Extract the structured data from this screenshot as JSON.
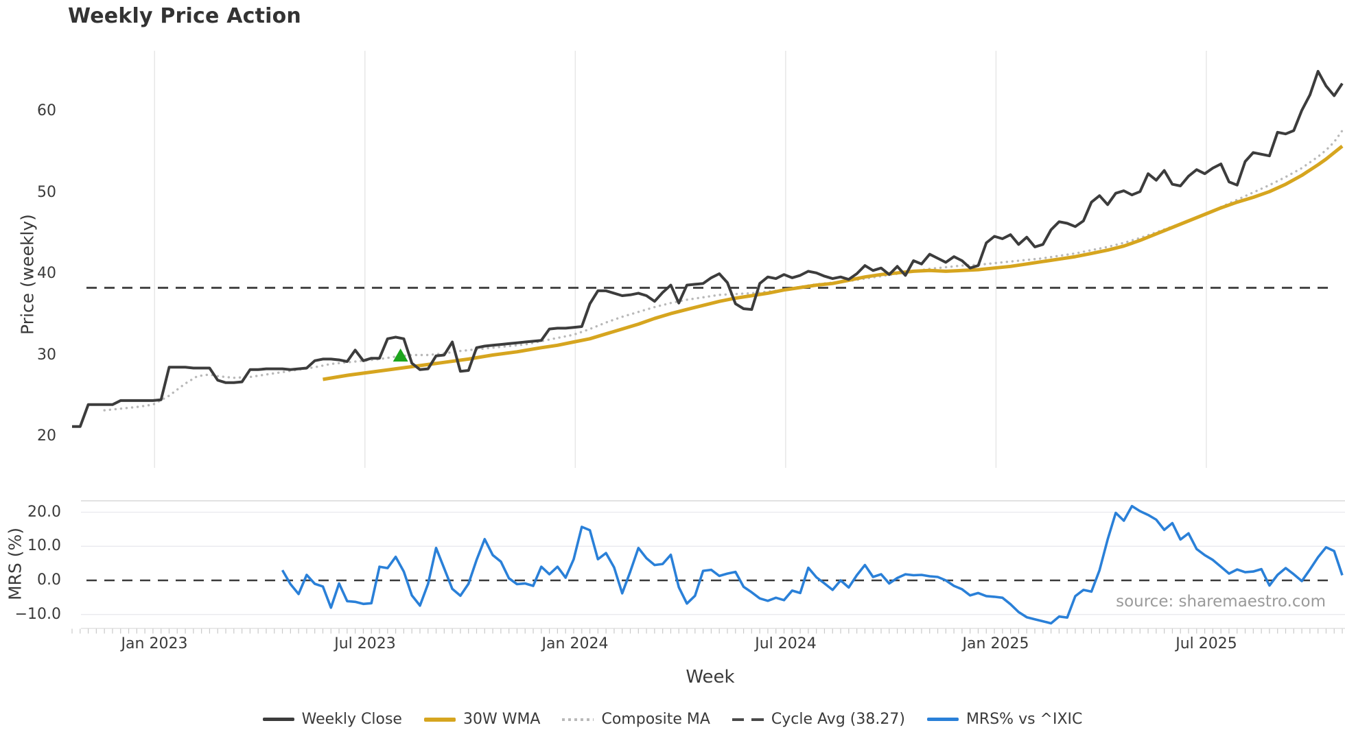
{
  "title": "Weekly Price Action",
  "source_note": "source: sharemaestro.com",
  "colors": {
    "weekly_close": "#3c3c3c",
    "wma_30w": "#d6a51f",
    "composite_ma": "#b9b9b9",
    "cycle_avg": "#474747",
    "mrs_line": "#2a80d8",
    "signal_marker": "#1da51d",
    "gridline": "#e7e7e7",
    "tick_text": "#3a3a3a"
  },
  "axes": {
    "x": {
      "label": "Week",
      "ticks": [
        {
          "label": "Jan 2023",
          "week": 10.2
        },
        {
          "label": "Jul 2023",
          "week": 36.2
        },
        {
          "label": "Jan 2024",
          "week": 62.2
        },
        {
          "label": "Jul 2024",
          "week": 88.2
        },
        {
          "label": "Jan 2025",
          "week": 114.2
        },
        {
          "label": "Jul 2025",
          "week": 140.2
        }
      ]
    },
    "price_y": {
      "label": "Price (weekly)",
      "ticks": [
        "60",
        "50",
        "40",
        "30",
        "20"
      ]
    },
    "mrs_y": {
      "label": "MRS (%)",
      "ticks": [
        "20.0",
        "10.0",
        "0.0",
        "−10.0"
      ]
    }
  },
  "legend": [
    {
      "label": "Weekly Close",
      "color": "#3c3c3c",
      "style": "solid"
    },
    {
      "label": "30W WMA",
      "color": "#d6a51f",
      "style": "solid"
    },
    {
      "label": "Composite MA",
      "color": "#b9b9b9",
      "style": "dotted"
    },
    {
      "label": "Cycle Avg (38.27)",
      "color": "#4a4a4a",
      "style": "dashed"
    },
    {
      "label": "MRS% vs ^IXIC",
      "color": "#2a80d8",
      "style": "solid"
    }
  ],
  "chart_data": [
    {
      "type": "line",
      "panel": "price",
      "title": "Weekly Price Action",
      "xlabel": "Week",
      "ylabel": "Price (weekly)",
      "ylim": [
        16.5,
        67.5
      ],
      "yticks": [
        20,
        30,
        40,
        50,
        60
      ],
      "x_unit": "week_index",
      "x_range_weeks": [
        0,
        157
      ],
      "x_tick_labels": [
        "Jan 2023",
        "Jul 2023",
        "Jan 2024",
        "Jul 2024",
        "Jan 2025",
        "Jul 2025"
      ],
      "grid": "vertical-only",
      "series": [
        {
          "name": "Cycle Avg",
          "type": "hline",
          "value": 38.27,
          "color": "#474747",
          "style": "dashed",
          "line_width": 3
        },
        {
          "name": "Composite MA",
          "type": "line",
          "style": "dotted",
          "color": "#b9b9b9",
          "line_width": 3.4,
          "points": [
            [
              4,
              23.2
            ],
            [
              6,
              23.4
            ],
            [
              8,
              23.6
            ],
            [
              10,
              23.9
            ],
            [
              12,
              25.0
            ],
            [
              14,
              26.5
            ],
            [
              15.5,
              27.4
            ],
            [
              17,
              27.6
            ],
            [
              18,
              27.4
            ],
            [
              20,
              27.2
            ],
            [
              22,
              27.3
            ],
            [
              24,
              27.6
            ],
            [
              26,
              27.9
            ],
            [
              28,
              28.2
            ],
            [
              30,
              28.5
            ],
            [
              32,
              28.9
            ],
            [
              34,
              29.1
            ],
            [
              36,
              29.3
            ],
            [
              38,
              29.5
            ],
            [
              40,
              29.8
            ],
            [
              42,
              30.0
            ],
            [
              44,
              30.0
            ],
            [
              46,
              30.2
            ],
            [
              48,
              30.5
            ],
            [
              50,
              30.7
            ],
            [
              52,
              30.9
            ],
            [
              54,
              31.1
            ],
            [
              56,
              31.3
            ],
            [
              58,
              31.7
            ],
            [
              60,
              32.1
            ],
            [
              62,
              32.5
            ],
            [
              64,
              33.2
            ],
            [
              66,
              34.0
            ],
            [
              68,
              34.7
            ],
            [
              70,
              35.3
            ],
            [
              72,
              35.9
            ],
            [
              74,
              36.4
            ],
            [
              76,
              36.8
            ],
            [
              78,
              37.1
            ],
            [
              80,
              37.4
            ],
            [
              82,
              37.5
            ],
            [
              84,
              37.6
            ],
            [
              86,
              37.8
            ],
            [
              88,
              38.0
            ],
            [
              90,
              38.4
            ],
            [
              92,
              38.7
            ],
            [
              94,
              38.9
            ],
            [
              96,
              39.1
            ],
            [
              98,
              39.4
            ],
            [
              100,
              39.7
            ],
            [
              102,
              40.0
            ],
            [
              104,
              40.3
            ],
            [
              106,
              40.6
            ],
            [
              108,
              40.8
            ],
            [
              110,
              41.0
            ],
            [
              112,
              41.1
            ],
            [
              114,
              41.3
            ],
            [
              116,
              41.5
            ],
            [
              118,
              41.7
            ],
            [
              120,
              41.9
            ],
            [
              122,
              42.2
            ],
            [
              124,
              42.5
            ],
            [
              126,
              42.9
            ],
            [
              128,
              43.3
            ],
            [
              130,
              43.8
            ],
            [
              132,
              44.4
            ],
            [
              134,
              45.1
            ],
            [
              136,
              45.8
            ],
            [
              138,
              46.5
            ],
            [
              140,
              47.3
            ],
            [
              142,
              48.2
            ],
            [
              144,
              49.1
            ],
            [
              146,
              50.0
            ],
            [
              148,
              50.9
            ],
            [
              150,
              51.9
            ],
            [
              152,
              53.0
            ],
            [
              154,
              54.4
            ],
            [
              155,
              55.2
            ],
            [
              156,
              56.2
            ],
            [
              157,
              57.6
            ]
          ]
        },
        {
          "name": "30W WMA",
          "type": "line",
          "style": "solid",
          "color": "#d6a51f",
          "line_width": 5,
          "points": [
            [
              31,
              27.0
            ],
            [
              34,
              27.5
            ],
            [
              37,
              27.9
            ],
            [
              40,
              28.3
            ],
            [
              43,
              28.7
            ],
            [
              46,
              29.1
            ],
            [
              49,
              29.5
            ],
            [
              52,
              30.0
            ],
            [
              55,
              30.4
            ],
            [
              58,
              30.9
            ],
            [
              60,
              31.2
            ],
            [
              62,
              31.6
            ],
            [
              64,
              32.0
            ],
            [
              66,
              32.6
            ],
            [
              68,
              33.2
            ],
            [
              70,
              33.8
            ],
            [
              72,
              34.5
            ],
            [
              74,
              35.1
            ],
            [
              76,
              35.6
            ],
            [
              78,
              36.1
            ],
            [
              80,
              36.6
            ],
            [
              82,
              37.0
            ],
            [
              84,
              37.3
            ],
            [
              86,
              37.6
            ],
            [
              88,
              38.0
            ],
            [
              90,
              38.3
            ],
            [
              92,
              38.6
            ],
            [
              94,
              38.8
            ],
            [
              96,
              39.2
            ],
            [
              98,
              39.6
            ],
            [
              100,
              39.9
            ],
            [
              102,
              40.1
            ],
            [
              104,
              40.3
            ],
            [
              106,
              40.4
            ],
            [
              108,
              40.3
            ],
            [
              110,
              40.4
            ],
            [
              112,
              40.5
            ],
            [
              114,
              40.7
            ],
            [
              116,
              40.9
            ],
            [
              118,
              41.2
            ],
            [
              120,
              41.5
            ],
            [
              122,
              41.8
            ],
            [
              124,
              42.1
            ],
            [
              126,
              42.5
            ],
            [
              128,
              42.9
            ],
            [
              130,
              43.4
            ],
            [
              132,
              44.1
            ],
            [
              134,
              44.9
            ],
            [
              136,
              45.7
            ],
            [
              138,
              46.5
            ],
            [
              140,
              47.3
            ],
            [
              142,
              48.1
            ],
            [
              144,
              48.8
            ],
            [
              146,
              49.4
            ],
            [
              148,
              50.1
            ],
            [
              150,
              51.0
            ],
            [
              152,
              52.1
            ],
            [
              154,
              53.4
            ],
            [
              155,
              54.1
            ],
            [
              156,
              54.9
            ],
            [
              157,
              55.7
            ]
          ]
        },
        {
          "name": "Weekly Close",
          "type": "line",
          "style": "solid",
          "color": "#3c3c3c",
          "line_width": 4,
          "start_week": 0,
          "weekly_values": [
            21.2,
            21.2,
            23.9,
            23.9,
            23.9,
            23.9,
            24.4,
            24.4,
            24.4,
            24.4,
            24.4,
            24.5,
            28.5,
            28.5,
            28.5,
            28.4,
            28.4,
            28.4,
            26.9,
            26.6,
            26.6,
            26.7,
            28.2,
            28.2,
            28.3,
            28.3,
            28.3,
            28.2,
            28.3,
            28.4,
            29.3,
            29.5,
            29.5,
            29.4,
            29.2,
            30.6,
            29.3,
            29.6,
            29.6,
            32.0,
            32.2,
            32.0,
            29.0,
            28.2,
            28.3,
            29.9,
            30.0,
            31.6,
            28.0,
            28.1,
            30.9,
            31.1,
            31.2,
            31.3,
            31.4,
            31.5,
            31.6,
            31.7,
            31.8,
            33.2,
            33.3,
            33.3,
            33.4,
            33.5,
            36.3,
            37.9,
            37.9,
            37.6,
            37.3,
            37.4,
            37.6,
            37.3,
            36.6,
            37.7,
            38.6,
            36.4,
            38.6,
            38.7,
            38.8,
            39.5,
            40.0,
            38.9,
            36.3,
            35.7,
            35.6,
            38.8,
            39.6,
            39.4,
            39.9,
            39.5,
            39.8,
            40.3,
            40.1,
            39.7,
            39.4,
            39.6,
            39.3,
            40.0,
            41.0,
            40.4,
            40.7,
            39.9,
            40.9,
            39.8,
            41.6,
            41.2,
            42.4,
            41.9,
            41.4,
            42.1,
            41.6,
            40.7,
            41.0,
            43.8,
            44.6,
            44.3,
            44.8,
            43.6,
            44.5,
            43.3,
            43.6,
            45.4,
            46.4,
            46.2,
            45.8,
            46.5,
            48.8,
            49.6,
            48.5,
            49.9,
            50.2,
            49.7,
            50.1,
            52.3,
            51.5,
            52.7,
            51.0,
            50.8,
            52.0,
            52.8,
            52.3,
            53.0,
            53.5,
            51.3,
            50.9,
            53.8,
            54.9,
            54.7,
            54.5,
            57.4,
            57.2,
            57.6,
            60.1,
            62.0,
            64.9,
            63.1,
            61.9,
            63.4
          ]
        }
      ],
      "markers": [
        {
          "name": "signal-triangle",
          "shape": "triangle-up",
          "color": "#1da51d",
          "week": 40.6,
          "price": 30.0
        }
      ]
    },
    {
      "type": "line",
      "panel": "mrs",
      "xlabel": "Week",
      "ylabel": "MRS (%)",
      "ylim": [
        -15,
        24
      ],
      "yticks": [
        -10,
        0,
        10,
        20
      ],
      "grid": "horizontal-only",
      "series": [
        {
          "name": "Zero line",
          "type": "hline",
          "value": 0,
          "color": "#3a3a3a",
          "style": "dashed",
          "line_width": 2.6
        },
        {
          "name": "MRS% vs ^IXIC",
          "type": "line",
          "style": "solid",
          "color": "#2a80d8",
          "line_width": 3.6,
          "start_week": 26,
          "weekly_values": [
            3.0,
            -1.1,
            -4.0,
            1.6,
            -1.0,
            -1.8,
            -8.0,
            -0.9,
            -6.1,
            -6.3,
            -6.9,
            -6.7,
            4.0,
            3.6,
            6.9,
            2.6,
            -4.4,
            -7.4,
            -1.0,
            9.5,
            3.5,
            -2.5,
            -4.5,
            -1.0,
            6.0,
            12.1,
            7.4,
            5.5,
            0.6,
            -1.1,
            -0.9,
            -1.6,
            4.0,
            1.8,
            4.0,
            0.8,
            6.2,
            15.7,
            14.7,
            6.2,
            8.0,
            3.8,
            -3.8,
            2.6,
            9.5,
            6.5,
            4.5,
            4.8,
            7.5,
            -2.0,
            -6.8,
            -4.5,
            2.8,
            3.1,
            1.3,
            2.0,
            2.5,
            -1.9,
            -3.5,
            -5.3,
            -6.0,
            -5.1,
            -5.8,
            -3.0,
            -3.7,
            3.7,
            0.9,
            -0.9,
            -2.8,
            0.0,
            -2.1,
            1.5,
            4.5,
            1.0,
            1.8,
            -0.9,
            0.7,
            1.8,
            1.5,
            1.6,
            1.2,
            1.0,
            0.0,
            -1.6,
            -2.6,
            -4.4,
            -3.7,
            -4.6,
            -4.8,
            -5.1,
            -7.0,
            -9.3,
            -10.8,
            -11.4,
            -12.0,
            -12.6,
            -10.6,
            -10.9,
            -4.6,
            -2.8,
            -3.3,
            3.0,
            12.0,
            19.8,
            17.5,
            21.8,
            20.3,
            19.2,
            17.8,
            14.8,
            16.8,
            12.0,
            13.8,
            9.2,
            7.4,
            6.0,
            4.0,
            2.0,
            3.2,
            2.4,
            2.6,
            3.3,
            -1.5,
            1.6,
            3.6,
            1.8,
            -0.2,
            3.2,
            6.8,
            9.7,
            8.6,
            1.5
          ]
        }
      ]
    }
  ]
}
